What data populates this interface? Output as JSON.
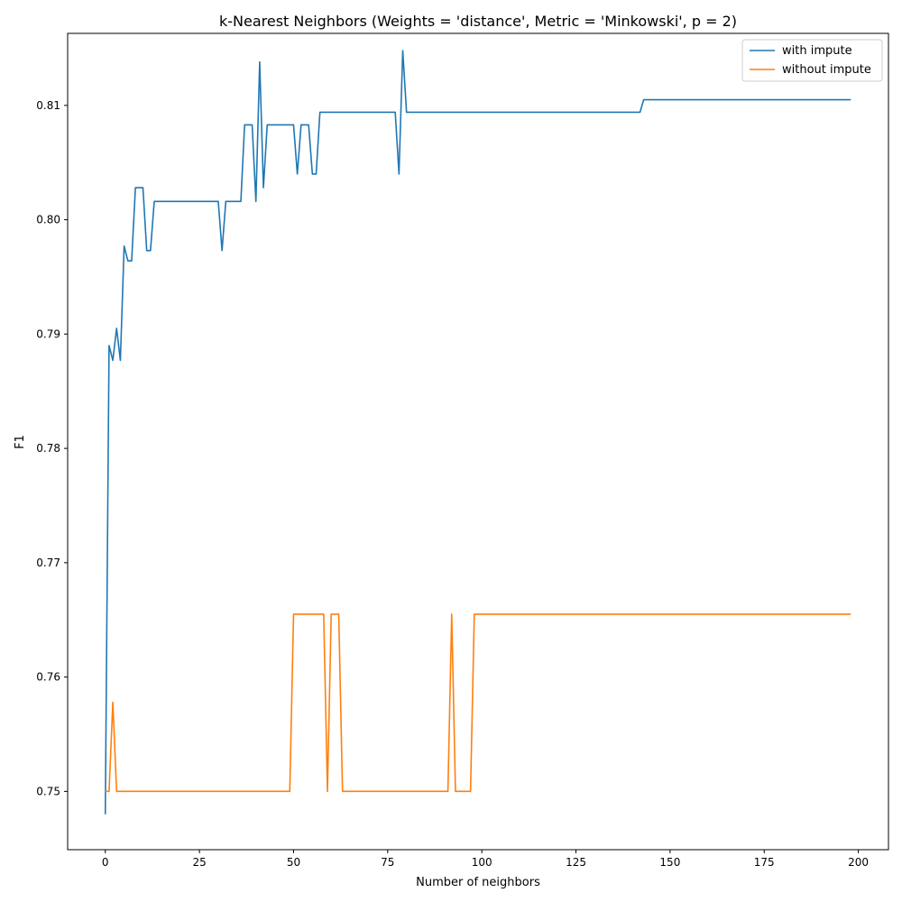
{
  "chart_data": {
    "type": "line",
    "title": "k-Nearest Neighbors (Weights = 'distance', Metric = 'Minkowski', p = 2)",
    "xlabel": "Number of neighbors",
    "ylabel": "F1",
    "xlim": [
      -10,
      208
    ],
    "ylim": [
      0.7449,
      0.8163
    ],
    "xticks": [
      0,
      25,
      50,
      75,
      100,
      125,
      150,
      175,
      200
    ],
    "xtick_labels": [
      "0",
      "25",
      "50",
      "75",
      "100",
      "125",
      "150",
      "175",
      "200"
    ],
    "yticks": [
      0.75,
      0.76,
      0.77,
      0.78,
      0.79,
      0.8,
      0.81
    ],
    "ytick_labels": [
      "0.75",
      "0.76",
      "0.77",
      "0.78",
      "0.79",
      "0.80",
      "0.81"
    ],
    "grid": false,
    "legend_position": "top-right",
    "series": [
      {
        "name": "with impute",
        "color": "#1f77b4",
        "points": [
          [
            0,
            0.748
          ],
          [
            1,
            0.789
          ],
          [
            2,
            0.7877
          ],
          [
            3,
            0.7905
          ],
          [
            4,
            0.7877
          ],
          [
            5,
            0.7977
          ],
          [
            6,
            0.7964
          ],
          [
            7,
            0.7964
          ],
          [
            8,
            0.8028
          ],
          [
            9,
            0.8028
          ],
          [
            10,
            0.8028
          ],
          [
            11,
            0.7973
          ],
          [
            12,
            0.7973
          ],
          [
            13,
            0.8016
          ],
          [
            30,
            0.8016
          ],
          [
            31,
            0.7973
          ],
          [
            32,
            0.8016
          ],
          [
            36,
            0.8016
          ],
          [
            37,
            0.8083
          ],
          [
            39,
            0.8083
          ],
          [
            40,
            0.8016
          ],
          [
            41,
            0.8138
          ],
          [
            42,
            0.8028
          ],
          [
            43,
            0.8083
          ],
          [
            50,
            0.8083
          ],
          [
            51,
            0.804
          ],
          [
            52,
            0.8083
          ],
          [
            54,
            0.8083
          ],
          [
            55,
            0.804
          ],
          [
            56,
            0.804
          ],
          [
            57,
            0.8094
          ],
          [
            77,
            0.8094
          ],
          [
            78,
            0.804
          ],
          [
            79,
            0.8148
          ],
          [
            80,
            0.8094
          ],
          [
            142,
            0.8094
          ],
          [
            143,
            0.8105
          ],
          [
            198,
            0.8105
          ]
        ]
      },
      {
        "name": "without impute",
        "color": "#ff7f0e",
        "points": [
          [
            0,
            0.75
          ],
          [
            1,
            0.75
          ],
          [
            2,
            0.7578
          ],
          [
            3,
            0.75
          ],
          [
            49,
            0.75
          ],
          [
            50,
            0.7655
          ],
          [
            58,
            0.7655
          ],
          [
            59,
            0.75
          ],
          [
            60,
            0.7655
          ],
          [
            62,
            0.7655
          ],
          [
            63,
            0.75
          ],
          [
            91,
            0.75
          ],
          [
            92,
            0.7655
          ],
          [
            93,
            0.75
          ],
          [
            97,
            0.75
          ],
          [
            98,
            0.7655
          ],
          [
            198,
            0.7655
          ]
        ]
      }
    ]
  }
}
